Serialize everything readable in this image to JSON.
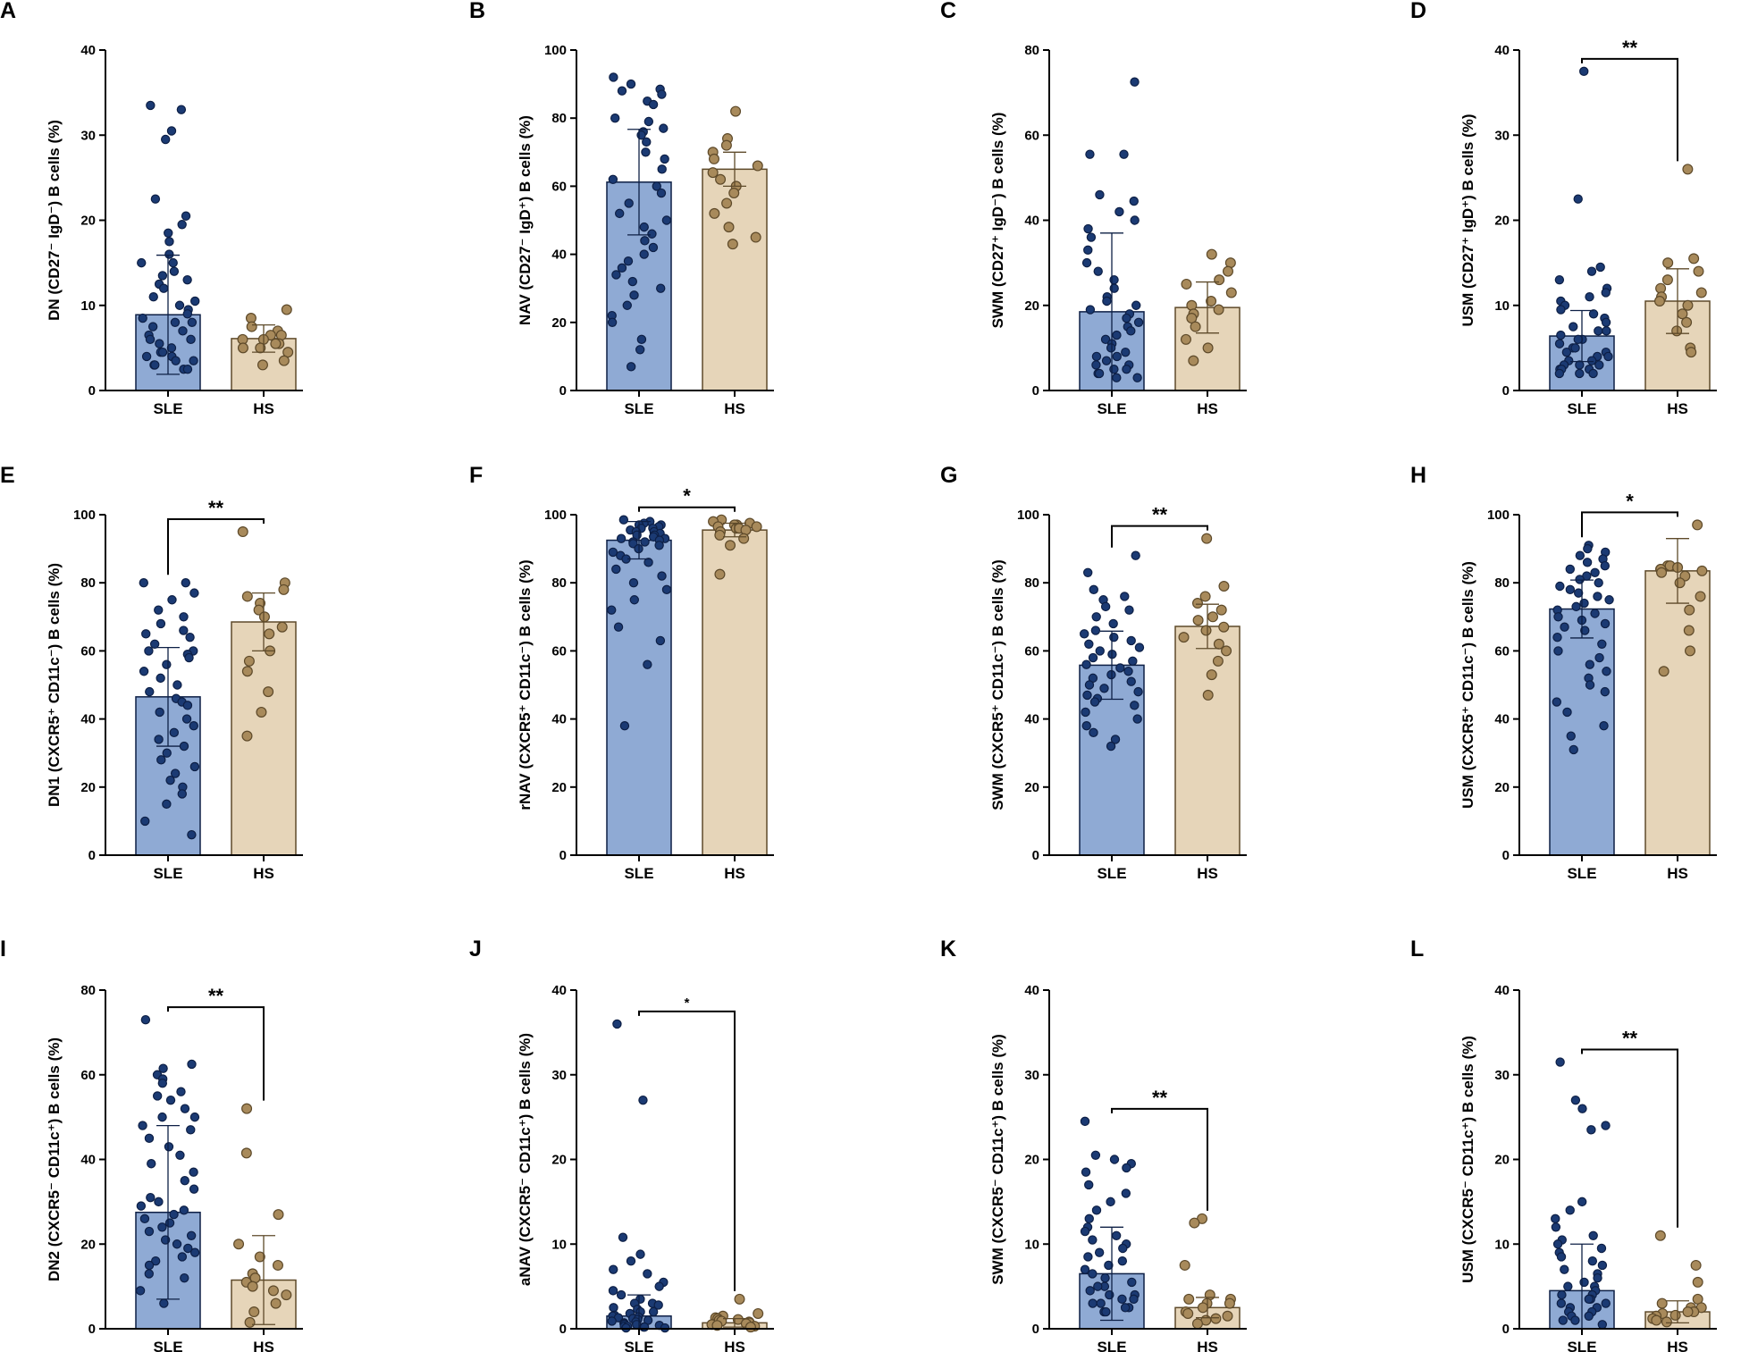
{
  "colors": {
    "sle_bar": "#8faad4",
    "sle_point": "#1b3a73",
    "sle_edge": "#0d1f45",
    "hs_bar": "#e6d5b9",
    "hs_point": "#a88a5b",
    "hs_edge": "#5e4a2a",
    "axis": "#000000"
  },
  "chart_data": [
    {
      "letter": "A",
      "type": "bar",
      "ylabel": "DN (CD27⁻ IgD⁻) B cells (%)",
      "ylim": [
        0,
        40
      ],
      "yticks": [
        0,
        10,
        20,
        30,
        40
      ],
      "categories": [
        "SLE",
        "HS"
      ],
      "series": [
        {
          "name": "SLE",
          "mean": 8.9,
          "sd": 7.0,
          "points": [
            33.5,
            33,
            30.5,
            29.5,
            22.5,
            20.5,
            19.5,
            18.5,
            17.5,
            16,
            15,
            15,
            14,
            13.5,
            13,
            12.5,
            12,
            11,
            10.5,
            10,
            9.5,
            9,
            8.5,
            8,
            8,
            7.5,
            7,
            6.5,
            6,
            6,
            5.5,
            5,
            4.5,
            4.5,
            4,
            4,
            3.5,
            3.5,
            3,
            3,
            2.5,
            2.5
          ]
        },
        {
          "name": "HS",
          "mean": 6.1,
          "sd": 1.6,
          "points": [
            9.5,
            8.5,
            7.5,
            7,
            6.5,
            6.5,
            6,
            6,
            5.5,
            5.5,
            5,
            5,
            4.5,
            3.5,
            3
          ]
        }
      ],
      "significance": null
    },
    {
      "letter": "B",
      "type": "bar",
      "ylabel": "NAV (CD27⁻ IgD⁺) B cells (%)",
      "ylim": [
        0,
        100
      ],
      "yticks": [
        0,
        20,
        40,
        60,
        80,
        100
      ],
      "categories": [
        "SLE",
        "HS"
      ],
      "series": [
        {
          "name": "SLE",
          "mean": 61.2,
          "sd": 15.5,
          "points": [
            92,
            90,
            88.5,
            88,
            87,
            85,
            84,
            80,
            79,
            77,
            76,
            75,
            73,
            70,
            68,
            65,
            62,
            60,
            58,
            55,
            52,
            50,
            48,
            46,
            44,
            42,
            40,
            38,
            36,
            34,
            32,
            30,
            28,
            25,
            22,
            20,
            15,
            12,
            7
          ]
        },
        {
          "name": "HS",
          "mean": 65,
          "sd": 5,
          "points": [
            82,
            74,
            72,
            70,
            68,
            66,
            64,
            62,
            60,
            58,
            55,
            52,
            48,
            45,
            43
          ]
        }
      ],
      "significance": null
    },
    {
      "letter": "C",
      "type": "bar",
      "ylabel": "SWM (CD27⁺ IgD⁻) B cells (%)",
      "ylim": [
        0,
        80
      ],
      "yticks": [
        0,
        20,
        40,
        60,
        80
      ],
      "categories": [
        "SLE",
        "HS"
      ],
      "series": [
        {
          "name": "SLE",
          "mean": 18.5,
          "sd": 18.5,
          "points": [
            72.5,
            55.5,
            55.5,
            46,
            44.5,
            42,
            40,
            38,
            36,
            33,
            30,
            28,
            26,
            24,
            22,
            21,
            20,
            19,
            18,
            17,
            16,
            15,
            14,
            13,
            12,
            11,
            10,
            9,
            8,
            8,
            7,
            6,
            6,
            5,
            5,
            4,
            4,
            3,
            3
          ]
        },
        {
          "name": "HS",
          "mean": 19.5,
          "sd": 6,
          "points": [
            32,
            30,
            28,
            26,
            25,
            23,
            21,
            20,
            19,
            18,
            17,
            15,
            12,
            10,
            7
          ]
        }
      ],
      "significance": null
    },
    {
      "letter": "D",
      "type": "bar",
      "ylabel": "USM (CD27⁺ IgD⁺) B cells (%)",
      "ylim": [
        0,
        40
      ],
      "yticks": [
        0,
        10,
        20,
        30,
        40
      ],
      "categories": [
        "SLE",
        "HS"
      ],
      "series": [
        {
          "name": "SLE",
          "mean": 6.4,
          "sd": 3.0,
          "points": [
            37.5,
            22.5,
            14.5,
            14,
            13,
            12,
            11.5,
            11,
            10.5,
            10,
            9.5,
            9,
            8.5,
            8,
            7.5,
            7,
            7,
            6.5,
            6,
            6,
            5.5,
            5,
            5,
            4.5,
            4.5,
            4,
            4,
            3.5,
            3.5,
            3,
            3,
            3,
            2.5,
            2.5,
            2.5,
            2,
            2,
            2
          ]
        },
        {
          "name": "HS",
          "mean": 10.5,
          "sd": 3.8,
          "points": [
            26,
            15.5,
            15,
            14,
            13,
            12,
            11.5,
            11,
            10.5,
            10,
            9,
            8,
            7,
            5,
            4.5
          ]
        }
      ],
      "significance": "**"
    },
    {
      "letter": "E",
      "type": "bar",
      "ylabel": "DN1 (CXCR5⁺ CD11c⁻) B cells (%)",
      "ylim": [
        0,
        100
      ],
      "yticks": [
        0,
        20,
        40,
        60,
        80,
        100
      ],
      "categories": [
        "SLE",
        "HS"
      ],
      "series": [
        {
          "name": "SLE",
          "mean": 46.5,
          "sd": 14.5,
          "points": [
            80,
            80,
            77,
            75,
            72,
            70,
            68,
            66,
            65,
            64,
            62,
            60,
            60,
            59,
            58,
            56,
            54,
            52,
            50,
            48,
            46,
            45,
            44,
            42,
            40,
            38,
            36,
            34,
            32,
            30,
            28,
            26,
            24,
            22,
            20,
            18,
            15,
            10,
            6
          ]
        },
        {
          "name": "HS",
          "mean": 68.5,
          "sd": 8.5,
          "points": [
            95,
            80,
            78,
            76,
            74,
            72,
            70,
            67,
            65,
            60,
            57,
            54,
            48,
            42,
            35
          ]
        }
      ],
      "significance": "**"
    },
    {
      "letter": "F",
      "type": "bar",
      "ylabel": "rNAV (CXCR5⁺ CD11c⁻) B cells (%)",
      "ylim": [
        0,
        100
      ],
      "yticks": [
        0,
        20,
        40,
        60,
        80,
        100
      ],
      "categories": [
        "SLE",
        "HS"
      ],
      "series": [
        {
          "name": "SLE",
          "mean": 92.5,
          "sd": 5.5,
          "points": [
            98.5,
            98,
            97.5,
            97,
            97,
            96.5,
            96,
            96,
            95.5,
            95,
            95,
            94.5,
            94,
            94,
            93.5,
            93,
            93,
            92.5,
            92,
            92,
            91.5,
            91,
            90,
            89,
            88,
            87,
            86,
            84,
            82,
            80,
            78,
            75,
            72,
            67,
            63,
            56,
            38
          ]
        },
        {
          "name": "HS",
          "mean": 95.5,
          "sd": 2.0,
          "points": [
            98.5,
            98,
            97.5,
            97,
            97,
            96.5,
            96.5,
            96,
            96,
            95.5,
            95,
            94,
            93,
            91,
            82.5
          ]
        }
      ],
      "significance": "*"
    },
    {
      "letter": "G",
      "type": "bar",
      "ylabel": "SWM (CXCR5⁺ CD11c⁻) B cells (%)",
      "ylim": [
        0,
        100
      ],
      "yticks": [
        0,
        20,
        40,
        60,
        80,
        100
      ],
      "categories": [
        "SLE",
        "HS"
      ],
      "series": [
        {
          "name": "SLE",
          "mean": 55.8,
          "sd": 10.0,
          "points": [
            88,
            83,
            78,
            76,
            75,
            73,
            72,
            70,
            68,
            66,
            65,
            64,
            63,
            62,
            61,
            60,
            59,
            58,
            57,
            56,
            55,
            54,
            53,
            52,
            51,
            50,
            49,
            48,
            47,
            46,
            45,
            44,
            42,
            40,
            38,
            36,
            34,
            32
          ]
        },
        {
          "name": "HS",
          "mean": 67.2,
          "sd": 6.5,
          "points": [
            93,
            79,
            76,
            74,
            72,
            70,
            69,
            67,
            66,
            64,
            62,
            60,
            57,
            53,
            47
          ]
        }
      ],
      "significance": "**"
    },
    {
      "letter": "H",
      "type": "bar",
      "ylabel": "USM (CXCR5⁺ CD11c⁻) B cells (%)",
      "ylim": [
        0,
        100
      ],
      "yticks": [
        0,
        20,
        40,
        60,
        80,
        100
      ],
      "categories": [
        "SLE",
        "HS"
      ],
      "series": [
        {
          "name": "SLE",
          "mean": 72.3,
          "sd": 8.5,
          "points": [
            91,
            90,
            89,
            88,
            87,
            86,
            85,
            84,
            83,
            82,
            81,
            80,
            79,
            78,
            77,
            76,
            75,
            74,
            73,
            72,
            71,
            70,
            69,
            68,
            67,
            66,
            64,
            62,
            60,
            58,
            56,
            54,
            52,
            50,
            48,
            45,
            42,
            38,
            35,
            31
          ]
        },
        {
          "name": "HS",
          "mean": 83.5,
          "sd": 9.5,
          "points": [
            97,
            85,
            85,
            84.5,
            84,
            84,
            83.5,
            83,
            82,
            80,
            76,
            72,
            66,
            60,
            54
          ]
        }
      ],
      "significance": "*"
    },
    {
      "letter": "I",
      "type": "bar",
      "ylabel": "DN2 (CXCR5⁻ CD11c⁺) B cells (%)",
      "ylim": [
        0,
        80
      ],
      "yticks": [
        0,
        20,
        40,
        60,
        80
      ],
      "categories": [
        "SLE",
        "HS"
      ],
      "series": [
        {
          "name": "SLE",
          "mean": 27.5,
          "sd": 20.5,
          "points": [
            73,
            62.5,
            61.5,
            60,
            59,
            58,
            56,
            55,
            54,
            52,
            50,
            50,
            48,
            47,
            45,
            43,
            41,
            39,
            37,
            35,
            33,
            31,
            30,
            29,
            28,
            27,
            26,
            25,
            24,
            23,
            22,
            21,
            20,
            19,
            18,
            17,
            16,
            15,
            13,
            12,
            9,
            6
          ]
        },
        {
          "name": "HS",
          "mean": 11.5,
          "sd": 10.5,
          "points": [
            52,
            41.5,
            27,
            20,
            17,
            15,
            13,
            12,
            11,
            10,
            9,
            8,
            6,
            4,
            1.5
          ]
        }
      ],
      "significance": "**"
    },
    {
      "letter": "J",
      "type": "bar",
      "ylabel": "aNAV (CXCR5⁻ CD11c⁺) B cells (%)",
      "ylim": [
        0,
        40
      ],
      "yticks": [
        0,
        10,
        20,
        30,
        40
      ],
      "categories": [
        "SLE",
        "HS"
      ],
      "series": [
        {
          "name": "SLE",
          "mean": 1.5,
          "sd": 2.5,
          "points": [
            36,
            27,
            10.8,
            8.8,
            8,
            7,
            6.5,
            5.5,
            5,
            4.5,
            4,
            3.5,
            3,
            3,
            2.8,
            2.5,
            2.3,
            2,
            2,
            1.8,
            1.6,
            1.5,
            1.4,
            1.3,
            1.2,
            1.1,
            1,
            0.9,
            0.8,
            0.7,
            0.6,
            0.5,
            0.5,
            0.4,
            0.3,
            0.3,
            0.2,
            0.2,
            0.1,
            0.1
          ]
        },
        {
          "name": "HS",
          "mean": 0.7,
          "sd": 0.5,
          "points": [
            3.5,
            1.8,
            1.5,
            1.3,
            1.2,
            1.1,
            1,
            0.9,
            0.8,
            0.7,
            0.6,
            0.5,
            0.4,
            0.3,
            0.2
          ]
        }
      ],
      "significance": "*"
    },
    {
      "letter": "K",
      "type": "bar",
      "ylabel": "SWM (CXCR5⁻ CD11c⁺) B cells (%)",
      "ylim": [
        0,
        40
      ],
      "yticks": [
        0,
        10,
        20,
        30,
        40
      ],
      "categories": [
        "SLE",
        "HS"
      ],
      "series": [
        {
          "name": "SLE",
          "mean": 6.5,
          "sd": 5.5,
          "points": [
            24.5,
            20.5,
            20,
            19.5,
            19,
            18.5,
            17,
            16,
            15,
            14,
            13,
            12,
            11.5,
            11,
            10.5,
            10,
            9.5,
            9,
            8.5,
            8,
            7.5,
            7,
            6.5,
            6,
            5.5,
            5,
            5,
            4.5,
            4,
            4,
            3.5,
            3.5,
            3,
            3,
            2.5,
            2.5,
            2,
            2
          ]
        },
        {
          "name": "HS",
          "mean": 2.5,
          "sd": 1.2,
          "points": [
            13,
            12.5,
            7.5,
            4,
            3.5,
            3.5,
            3,
            3,
            2.5,
            2,
            1.8,
            1.5,
            1.2,
            1,
            0.6
          ]
        }
      ],
      "significance": "**"
    },
    {
      "letter": "L",
      "type": "bar",
      "ylabel": "USM (CXCR5⁻ CD11c⁺) B cells (%)",
      "ylim": [
        0,
        40
      ],
      "yticks": [
        0,
        10,
        20,
        30,
        40
      ],
      "categories": [
        "SLE",
        "HS"
      ],
      "series": [
        {
          "name": "SLE",
          "mean": 4.5,
          "sd": 5.5,
          "points": [
            31.5,
            27,
            26,
            24,
            23.5,
            15,
            14,
            13,
            12,
            11,
            10.5,
            10,
            9.5,
            9,
            8.5,
            8,
            7.5,
            7,
            6.5,
            6,
            5.5,
            5,
            5,
            4.5,
            4,
            4,
            3.5,
            3.5,
            3,
            3,
            2.5,
            2.5,
            2,
            2,
            1.5,
            1.5,
            1,
            1,
            0.5
          ]
        },
        {
          "name": "HS",
          "mean": 2.0,
          "sd": 1.3,
          "points": [
            11,
            7.5,
            5.5,
            3.5,
            3,
            2.5,
            2.5,
            2,
            2,
            1.8,
            1.6,
            1.5,
            1.2,
            1,
            0.8
          ]
        }
      ],
      "significance": "**"
    }
  ]
}
